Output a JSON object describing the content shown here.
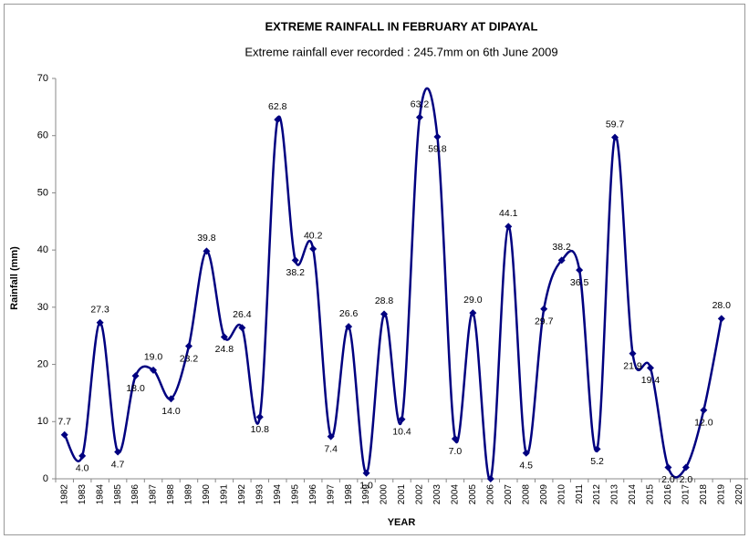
{
  "chart_data": {
    "type": "line",
    "title": "EXTREME  RAINFALL  IN FEBRUARY AT DIPAYAL",
    "subtitle": "Extreme rainfall ever recorded : 245.7mm on 6th June 2009",
    "x_label": "YEAR",
    "y_label": "Rainfall (mm)",
    "categories": [
      "1982",
      "1983",
      "1984",
      "1985",
      "1986",
      "1987",
      "1988",
      "1989",
      "1990",
      "1991",
      "1992",
      "1993",
      "1994",
      "1995",
      "1996",
      "1997",
      "1998",
      "1999",
      "2000",
      "2001",
      "2002",
      "2003",
      "2004",
      "2005",
      "2006",
      "2007",
      "2008",
      "2009",
      "2010",
      "2011",
      "2012",
      "2013",
      "2014",
      "2015",
      "2016",
      "2017",
      "2018",
      "2019",
      "2020"
    ],
    "series": [
      {
        "name": "Rainfall",
        "color": "#000080",
        "values": [
          7.7,
          4.0,
          27.3,
          4.7,
          18.0,
          19.0,
          14.0,
          23.2,
          39.8,
          24.8,
          26.4,
          10.8,
          62.8,
          38.2,
          40.2,
          7.4,
          26.6,
          1.0,
          28.8,
          10.4,
          63.2,
          59.8,
          7.0,
          29.0,
          0,
          44.1,
          4.5,
          29.7,
          38.2,
          36.5,
          5.2,
          59.7,
          21.9,
          19.4,
          2.0,
          2.0,
          12.0,
          28.0,
          null
        ],
        "value_labels": [
          "7.7",
          "4.0",
          "27.3",
          "4.7",
          "18.0",
          "19.0",
          "14.0",
          "23.2",
          "39.8",
          "24.8",
          "26.4",
          "10.8",
          "62.8",
          "38.2",
          "40.2",
          "7.4",
          "26.6",
          "1.0",
          "28.8",
          "10.4",
          "63.2",
          "59.8",
          "7.0",
          "29.0",
          null,
          "44.1",
          "4.5",
          "29.7",
          "38.2",
          "36.5",
          "5.2",
          "59.7",
          "21.9",
          "19.4",
          "2.0",
          "2.0",
          "12.0",
          "28.0",
          null
        ]
      }
    ],
    "ylim": [
      0,
      70
    ],
    "yticks": [
      0,
      10,
      20,
      30,
      40,
      50,
      60,
      70
    ],
    "grid": false
  }
}
